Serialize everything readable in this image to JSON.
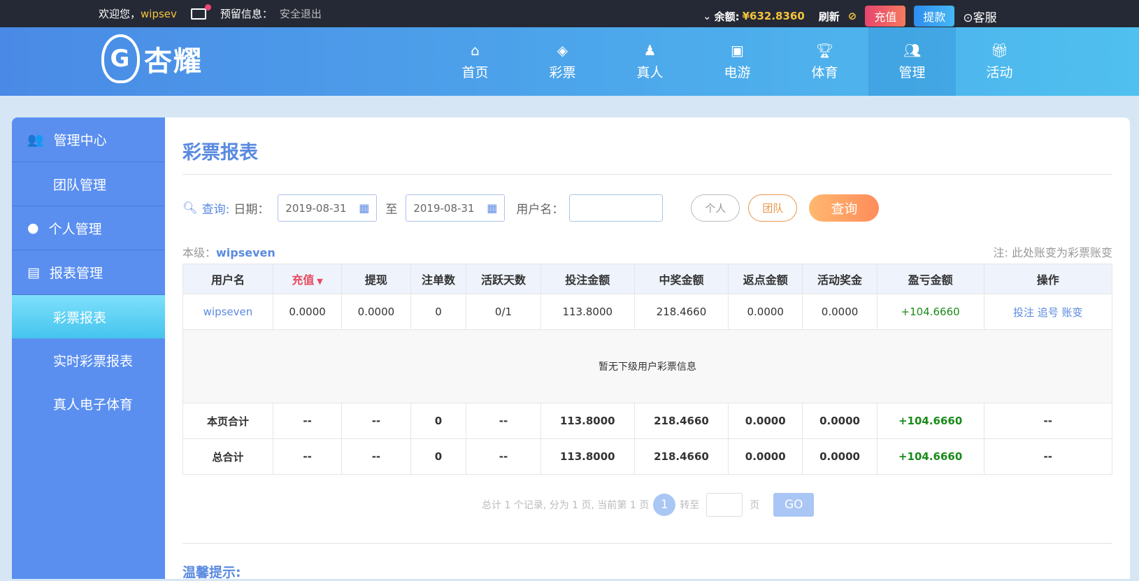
{
  "topbar": {
    "welcome": "欢迎您，",
    "username": "wipsev",
    "reserved_info": "预留信息：",
    "logout": "安全退出",
    "balance_label": "余额:",
    "balance": "¥632.8360",
    "refresh": "刷新",
    "recharge": "充值",
    "withdraw": "提款",
    "service": "客服"
  },
  "logo": {
    "text": "杏耀"
  },
  "nav": [
    {
      "label": "首页",
      "icon": "home-icon"
    },
    {
      "label": "彩票",
      "icon": "lottery-icon"
    },
    {
      "label": "真人",
      "icon": "live-dealer-icon"
    },
    {
      "label": "电游",
      "icon": "slot-machine-icon"
    },
    {
      "label": "体育",
      "icon": "trophy-icon"
    },
    {
      "label": "管理",
      "icon": "users-icon",
      "active": true
    },
    {
      "label": "活动",
      "icon": "gift-icon"
    }
  ],
  "sidebar": {
    "groups": [
      {
        "label": "管理中心",
        "icon": "users-icon",
        "items": [
          "团队管理"
        ]
      },
      {
        "label": "个人管理",
        "icon": "user-icon",
        "items": []
      },
      {
        "label": "报表管理",
        "icon": "document-icon",
        "items": [
          "彩票报表",
          "实时彩票报表",
          "真人电子体育"
        ]
      }
    ],
    "active": "彩票报表"
  },
  "page": {
    "title": "彩票报表",
    "query_label": "查询:",
    "date_label": "日期：",
    "date_from": "2019-08-31",
    "to": "至",
    "date_to": "2019-08-31",
    "username_label": "用户名：",
    "username_value": "",
    "personal": "个人",
    "team": "团队",
    "search": "查询",
    "level_label": "本级：",
    "level_user": "wipseven",
    "note": "注: 此处账变为彩票账变",
    "tip": "温馨提示:"
  },
  "table": {
    "headers": [
      "用户名",
      "充值",
      "提现",
      "注单数",
      "活跃天数",
      "投注金额",
      "中奖金额",
      "返点金额",
      "活动奖金",
      "盈亏金额",
      "操作"
    ],
    "row": [
      "wipseven",
      "0.0000",
      "0.0000",
      "0",
      "0/1",
      "113.8000",
      "218.4660",
      "0.0000",
      "0.0000",
      "+104.6660"
    ],
    "actions": [
      "投注",
      "追号",
      "账变"
    ],
    "empty": "暂无下级用户彩票信息",
    "page_total": [
      "本页合计",
      "--",
      "--",
      "0",
      "--",
      "113.8000",
      "218.4660",
      "0.0000",
      "0.0000",
      "+104.6660",
      "--"
    ],
    "grand_total": [
      "总合计",
      "--",
      "--",
      "0",
      "--",
      "113.8000",
      "218.4660",
      "0.0000",
      "0.0000",
      "+104.6660",
      "--"
    ]
  },
  "pager": {
    "summary": "总计 1 个记录, 分为 1 页, 当前第 1 页",
    "current": "1",
    "goto": "转至",
    "page_unit": "页",
    "go": "GO"
  },
  "colors": {
    "accent": "#5a8ae0",
    "profit": "#1a8a1a",
    "sort_active": "#e84a5f"
  }
}
